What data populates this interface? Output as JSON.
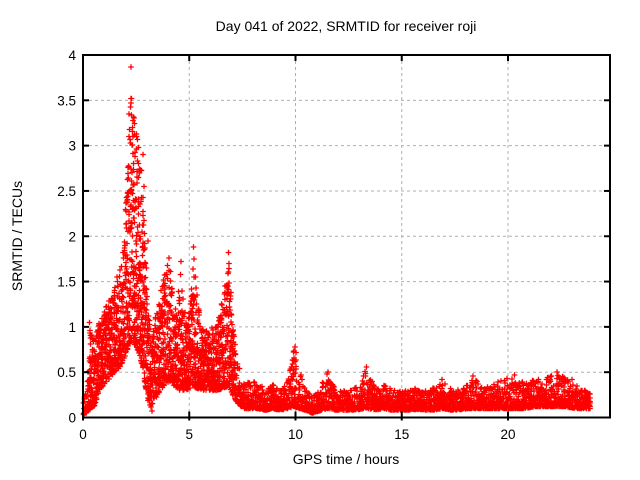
{
  "figure": {
    "background": "#ffffff"
  },
  "chart_data": {
    "type": "scatter",
    "title": "Day 041 of 2022, SRMTID for receiver roji",
    "xlabel": "GPS time / hours",
    "ylabel": "SRMTID / TECUs",
    "series_name": "SRMTID",
    "marker": "plus",
    "marker_color": "#ff0000",
    "grid": true,
    "grid_color": "#b0b0b0",
    "border_color": "#000000",
    "xlim": [
      0,
      24.8
    ],
    "ylim": [
      0,
      4
    ],
    "xticks": [
      0,
      5,
      10,
      15,
      20
    ],
    "xtick_labels": [
      "0",
      "5",
      "10",
      "15",
      "20"
    ],
    "yticks": [
      0,
      0.5,
      1,
      1.5,
      2,
      2.5,
      3,
      3.5,
      4
    ],
    "ytick_labels": [
      "0",
      "0.5",
      "1",
      "1.5",
      "2",
      "2.5",
      "3",
      "3.5",
      "4"
    ],
    "data_hours_range": [
      0.02,
      23.87
    ],
    "max_point": [
      2.25,
      3.87
    ],
    "envelope": [
      [
        0.0,
        0.03,
        0.15
      ],
      [
        0.2,
        0.05,
        0.4
      ],
      [
        0.35,
        0.1,
        1.0
      ],
      [
        0.55,
        0.12,
        0.85
      ],
      [
        0.75,
        0.3,
        1.05
      ],
      [
        0.95,
        0.35,
        1.15
      ],
      [
        1.15,
        0.4,
        1.3
      ],
      [
        1.45,
        0.5,
        1.45
      ],
      [
        1.75,
        0.55,
        1.65
      ],
      [
        1.95,
        0.65,
        1.95
      ],
      [
        2.1,
        0.75,
        3.0
      ],
      [
        2.25,
        0.85,
        3.55
      ],
      [
        2.45,
        0.8,
        3.25
      ],
      [
        2.65,
        0.7,
        2.95
      ],
      [
        2.85,
        0.5,
        2.6
      ],
      [
        3.0,
        0.2,
        1.6
      ],
      [
        3.2,
        0.1,
        0.85
      ],
      [
        3.5,
        0.25,
        1.2
      ],
      [
        3.8,
        0.35,
        1.55
      ],
      [
        4.05,
        0.4,
        1.75
      ],
      [
        4.3,
        0.35,
        1.15
      ],
      [
        4.55,
        0.3,
        1.65
      ],
      [
        4.9,
        0.3,
        0.95
      ],
      [
        5.2,
        0.35,
        1.7
      ],
      [
        5.35,
        0.32,
        1.45
      ],
      [
        5.55,
        0.3,
        1.0
      ],
      [
        5.9,
        0.3,
        0.95
      ],
      [
        6.3,
        0.3,
        1.05
      ],
      [
        6.6,
        0.32,
        1.35
      ],
      [
        6.85,
        0.35,
        1.8
      ],
      [
        7.05,
        0.25,
        1.0
      ],
      [
        7.3,
        0.15,
        0.6
      ],
      [
        7.6,
        0.1,
        0.38
      ],
      [
        8.2,
        0.1,
        0.4
      ],
      [
        8.6,
        0.08,
        0.3
      ],
      [
        8.9,
        0.1,
        0.38
      ],
      [
        9.3,
        0.08,
        0.3
      ],
      [
        9.65,
        0.1,
        0.42
      ],
      [
        9.95,
        0.12,
        0.78
      ],
      [
        10.2,
        0.1,
        0.5
      ],
      [
        10.5,
        0.08,
        0.3
      ],
      [
        10.8,
        0.05,
        0.22
      ],
      [
        11.2,
        0.08,
        0.35
      ],
      [
        11.5,
        0.1,
        0.5
      ],
      [
        11.9,
        0.08,
        0.3
      ],
      [
        12.5,
        0.08,
        0.3
      ],
      [
        13.0,
        0.09,
        0.35
      ],
      [
        13.35,
        0.1,
        0.55
      ],
      [
        13.7,
        0.08,
        0.35
      ],
      [
        14.1,
        0.1,
        0.38
      ],
      [
        14.6,
        0.08,
        0.3
      ],
      [
        15.2,
        0.08,
        0.3
      ],
      [
        15.8,
        0.09,
        0.33
      ],
      [
        16.4,
        0.08,
        0.32
      ],
      [
        16.9,
        0.1,
        0.4
      ],
      [
        17.4,
        0.08,
        0.3
      ],
      [
        17.9,
        0.09,
        0.32
      ],
      [
        18.35,
        0.1,
        0.45
      ],
      [
        18.9,
        0.1,
        0.33
      ],
      [
        19.4,
        0.1,
        0.38
      ],
      [
        19.8,
        0.1,
        0.42
      ],
      [
        20.3,
        0.1,
        0.45
      ],
      [
        20.8,
        0.1,
        0.38
      ],
      [
        21.3,
        0.12,
        0.42
      ],
      [
        21.8,
        0.12,
        0.45
      ],
      [
        22.3,
        0.12,
        0.48
      ],
      [
        22.7,
        0.12,
        0.44
      ],
      [
        23.2,
        0.1,
        0.36
      ],
      [
        23.6,
        0.1,
        0.3
      ],
      [
        23.87,
        0.1,
        0.26
      ]
    ],
    "peak_points": [
      [
        2.25,
        3.87
      ],
      [
        2.28,
        3.52
      ],
      [
        2.17,
        3.35
      ],
      [
        2.35,
        3.28
      ],
      [
        2.42,
        3.12
      ],
      [
        2.52,
        3.1
      ],
      [
        2.62,
        2.98
      ],
      [
        2.83,
        2.9
      ],
      [
        2.87,
        2.55
      ],
      [
        2.9,
        1.92
      ],
      [
        3.05,
        1.95
      ],
      [
        0.3,
        1.05
      ],
      [
        0.33,
        0.93
      ],
      [
        3.25,
        0.07
      ],
      [
        4.05,
        1.76
      ],
      [
        4.6,
        1.72
      ],
      [
        5.2,
        1.88
      ],
      [
        5.22,
        1.75
      ],
      [
        6.85,
        1.82
      ],
      [
        6.88,
        1.7
      ],
      [
        9.97,
        0.78
      ],
      [
        10.02,
        0.72
      ],
      [
        11.52,
        0.5
      ],
      [
        13.35,
        0.56
      ],
      [
        16.9,
        0.42
      ],
      [
        18.35,
        0.46
      ],
      [
        20.3,
        0.47
      ],
      [
        22.3,
        0.5
      ],
      [
        23.0,
        0.42
      ]
    ],
    "sampling": {
      "start": 0.02,
      "end": 23.87,
      "step_hours": 0.008333,
      "seed": 2022041,
      "jitter": 0.006,
      "extra_prob": 0.3,
      "mid_span": 0.6,
      "wide_span": 1.5,
      "skew_narrow": 2.1,
      "skew_mid": 1.45,
      "skew_wide": 1.6
    }
  }
}
